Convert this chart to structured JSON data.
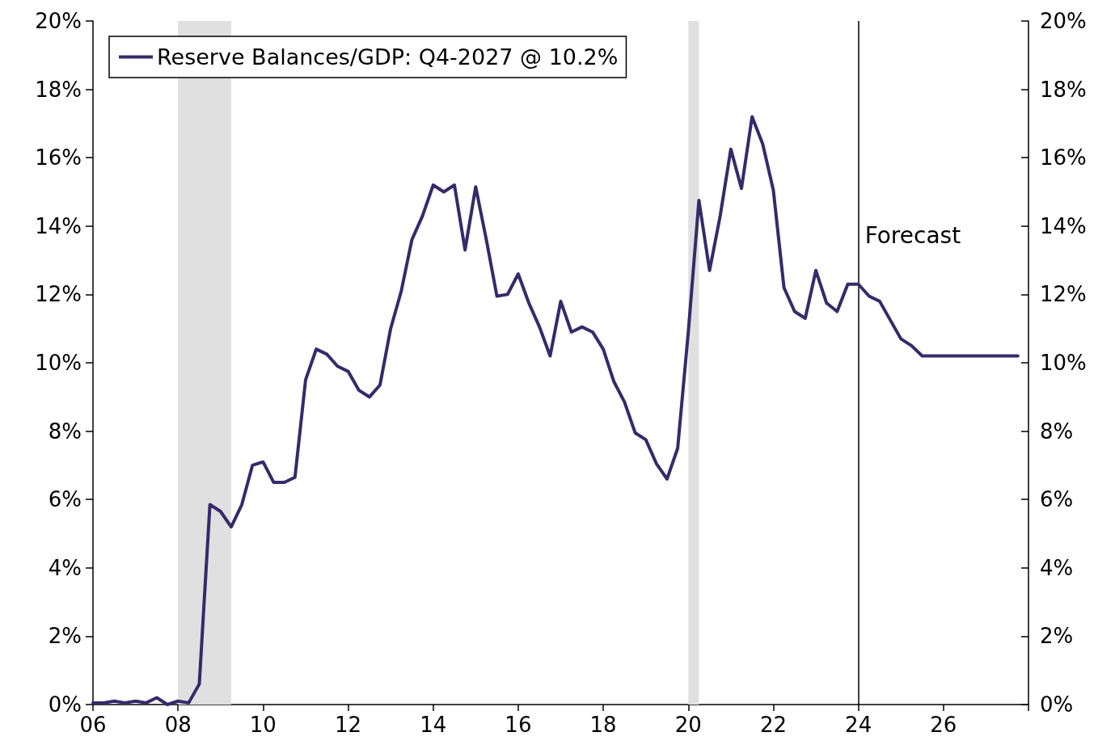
{
  "chart_data": {
    "type": "line",
    "legend": "top left",
    "marker": "none",
    "line_style": "solid",
    "grid": false,
    "xlim": [
      2006,
      2028
    ],
    "xticks": [
      {
        "value": 2006,
        "label": "06"
      },
      {
        "value": 2008,
        "label": "08"
      },
      {
        "value": 2010,
        "label": "10"
      },
      {
        "value": 2012,
        "label": "12"
      },
      {
        "value": 2014,
        "label": "14"
      },
      {
        "value": 2016,
        "label": "16"
      },
      {
        "value": 2018,
        "label": "18"
      },
      {
        "value": 2020,
        "label": "20"
      },
      {
        "value": 2022,
        "label": "22"
      },
      {
        "value": 2024,
        "label": "24"
      },
      {
        "value": 2026,
        "label": "26"
      },
      {
        "value": 2028,
        "label": null
      }
    ],
    "ylim": [
      0,
      20
    ],
    "yticks": [
      {
        "value": 0,
        "label": "0%"
      },
      {
        "value": 2,
        "label": "2%"
      },
      {
        "value": 4,
        "label": "4%"
      },
      {
        "value": 6,
        "label": "6%"
      },
      {
        "value": 8,
        "label": "8%"
      },
      {
        "value": 10,
        "label": "10%"
      },
      {
        "value": 12,
        "label": "12%"
      },
      {
        "value": 14,
        "label": "14%"
      },
      {
        "value": 16,
        "label": "16%"
      },
      {
        "value": 18,
        "label": "18%"
      },
      {
        "value": 20,
        "label": "20%"
      }
    ],
    "y2lim": [
      0,
      20
    ],
    "y2ticks": [
      {
        "value": 0,
        "label": "0%"
      },
      {
        "value": 2,
        "label": "2%"
      },
      {
        "value": 4,
        "label": "4%"
      },
      {
        "value": 6,
        "label": "6%"
      },
      {
        "value": 8,
        "label": "8%"
      },
      {
        "value": 10,
        "label": "10%"
      },
      {
        "value": 12,
        "label": "12%"
      },
      {
        "value": 14,
        "label": "14%"
      },
      {
        "value": 16,
        "label": "16%"
      },
      {
        "value": 18,
        "label": "18%"
      },
      {
        "value": 20,
        "label": "20%"
      }
    ],
    "x": [
      2006,
      2006.25,
      2006.5,
      2006.75,
      2007,
      2007.25,
      2007.5,
      2007.75,
      2008,
      2008.25,
      2008.5,
      2008.75,
      2009,
      2009.25,
      2009.5,
      2009.75,
      2010,
      2010.25,
      2010.5,
      2010.75,
      2011,
      2011.25,
      2011.5,
      2011.75,
      2012,
      2012.25,
      2012.5,
      2012.75,
      2013,
      2013.25,
      2013.5,
      2013.75,
      2014,
      2014.25,
      2014.5,
      2014.75,
      2015,
      2015.25,
      2015.5,
      2015.75,
      2016,
      2016.25,
      2016.5,
      2016.75,
      2017,
      2017.25,
      2017.5,
      2017.75,
      2018,
      2018.25,
      2018.5,
      2018.75,
      2019,
      2019.25,
      2019.5,
      2019.75,
      2020,
      2020.25,
      2020.5,
      2020.75,
      2021,
      2021.25,
      2021.5,
      2021.75,
      2022,
      2022.25,
      2022.5,
      2022.75,
      2023,
      2023.25,
      2023.5,
      2023.75,
      2024,
      2024.25,
      2024.5,
      2024.75,
      2025,
      2025.25,
      2025.5,
      2025.75,
      2026,
      2026.25,
      2026.5,
      2026.75,
      2027,
      2027.25,
      2027.5,
      2027.75
    ],
    "series": [
      {
        "name": "Reserve Balances/GDP: Q4-2027 @ 10.2%",
        "color": "#362a6a",
        "values": [
          0.05,
          0.05,
          0.1,
          0.05,
          0.1,
          0.05,
          0.2,
          0.0,
          0.1,
          0.05,
          0.6,
          5.85,
          5.65,
          5.2,
          5.85,
          7.0,
          7.1,
          6.5,
          6.5,
          6.65,
          9.5,
          10.4,
          10.25,
          9.9,
          9.75,
          9.2,
          9.0,
          9.35,
          11.0,
          12.1,
          13.6,
          14.3,
          15.2,
          15.0,
          15.2,
          13.3,
          15.15,
          13.6,
          11.95,
          12.0,
          12.6,
          11.75,
          11.05,
          10.2,
          11.8,
          10.9,
          11.05,
          10.9,
          10.4,
          9.45,
          8.85,
          7.95,
          7.75,
          7.05,
          6.6,
          7.5,
          10.9,
          14.75,
          12.7,
          14.3,
          16.25,
          15.1,
          17.2,
          16.4,
          15.05,
          12.2,
          11.5,
          11.3,
          12.7,
          11.75,
          11.5,
          12.3,
          12.3,
          11.95,
          11.8,
          11.25,
          10.7,
          10.5,
          10.2,
          10.2,
          10.2,
          10.2,
          10.2,
          10.2,
          10.2,
          10.2,
          10.2,
          10.2
        ]
      }
    ],
    "bands": [
      {
        "axis": "x",
        "from": 2008,
        "to": 2009.25,
        "color": "#e0e0e0"
      },
      {
        "axis": "x",
        "from": 2020,
        "to": 2020.25,
        "color": "#e0e0e0"
      }
    ],
    "ref_lines": [
      {
        "axis": "x",
        "value": 2024,
        "color": "#000000"
      }
    ],
    "annotations": [
      {
        "text": "Forecast",
        "x": 2024,
        "y": 14
      }
    ]
  }
}
